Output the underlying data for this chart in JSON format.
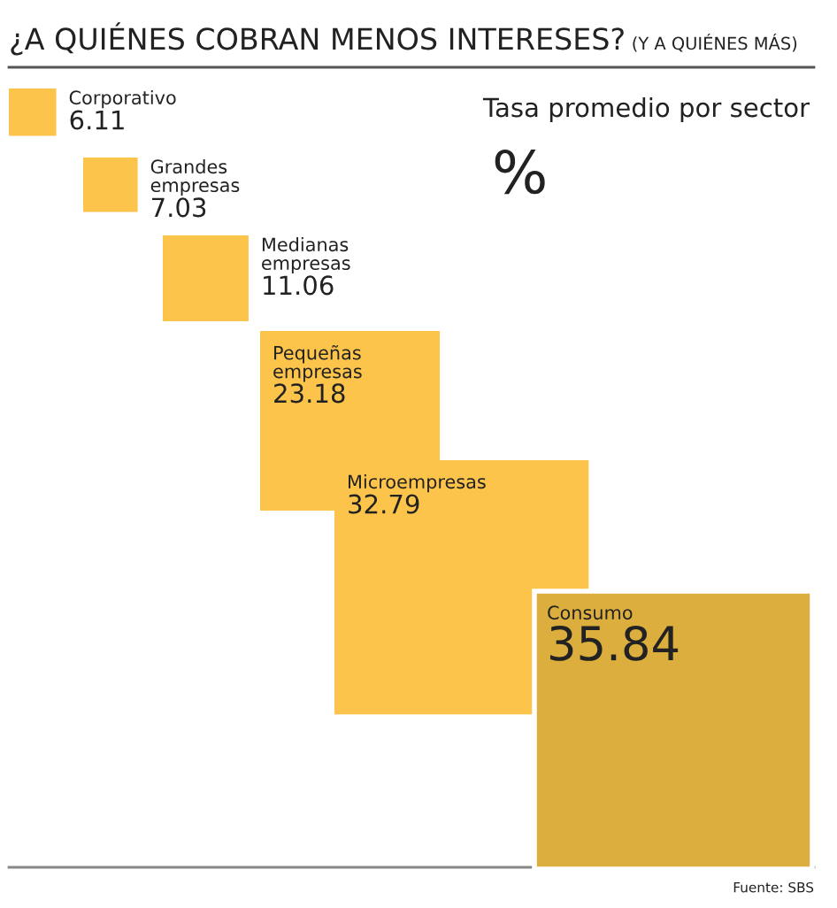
{
  "chart_data": {
    "type": "other",
    "title": "¿A QUIÉNES COBRAN MENOS INTERESES?",
    "subtitle": "(Y A QUIÉNES MÁS)",
    "categories": [
      "Corporativo",
      "Grandes empresas",
      "Medianas empresas",
      "Pequeñas empresas",
      "Microempresas",
      "Consumo"
    ],
    "values": [
      6.11,
      7.03,
      11.06,
      23.18,
      32.79,
      35.84
    ],
    "colors": [
      "#fcc44a",
      "#fcc44a",
      "#fcc44a",
      "#fcc44a",
      "#fcc44a",
      "#dcae3e"
    ],
    "data_labels": true,
    "annotations": [
      "Tasa promedio por sector",
      "%",
      "Fuente: SBS"
    ]
  }
}
